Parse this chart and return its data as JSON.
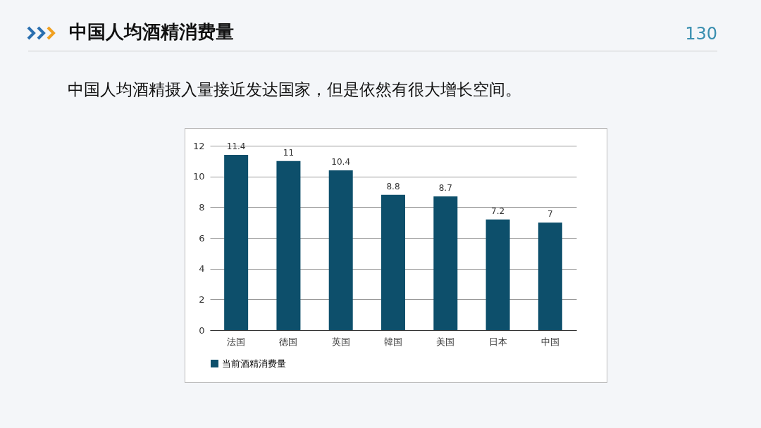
{
  "chart_data": {
    "type": "bar",
    "title": "中国人均酒精消费量",
    "subtitle": "中国人均酒精摄入量接近发达国家，但是依然有很大增长空间。",
    "annotations": [
      "130"
    ],
    "categories": [
      "法国",
      "德国",
      "英国",
      "韓国",
      "美国",
      "日本",
      "中国"
    ],
    "series": [
      {
        "name": "当前酒精消费量",
        "color": "#0d4f6b",
        "values": [
          11.4,
          11,
          10.4,
          8.8,
          8.7,
          7.2,
          7
        ]
      }
    ],
    "ylim": [
      0,
      12
    ],
    "yticks": [
      0,
      2,
      4,
      6,
      8,
      10,
      12
    ],
    "grid": "y",
    "legend": "bottom",
    "data_labels": true
  }
}
